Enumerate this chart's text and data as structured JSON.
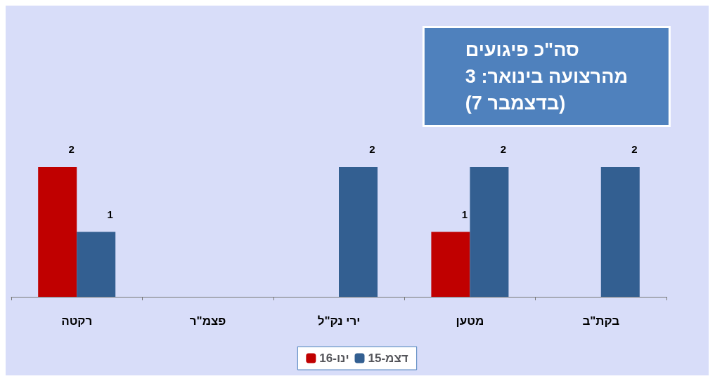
{
  "chart_data": {
    "type": "bar",
    "title": "סה\"כ פיגועים\nמהרצועה בינואר: 3\n(7 בדצמבר)",
    "categories": [
      "רקטה",
      "פצמ\"ר",
      "ירי נק\"ל",
      "מטען",
      "בקת\"ב"
    ],
    "series": [
      {
        "name": "ינו-16",
        "color": "#c00000",
        "values": [
          2,
          null,
          null,
          1,
          null
        ]
      },
      {
        "name": "דצמ-15",
        "color": "#335f91",
        "values": [
          1,
          null,
          2,
          2,
          2
        ]
      }
    ],
    "data_labels": true,
    "legend": "bottom",
    "grid": false
  }
}
